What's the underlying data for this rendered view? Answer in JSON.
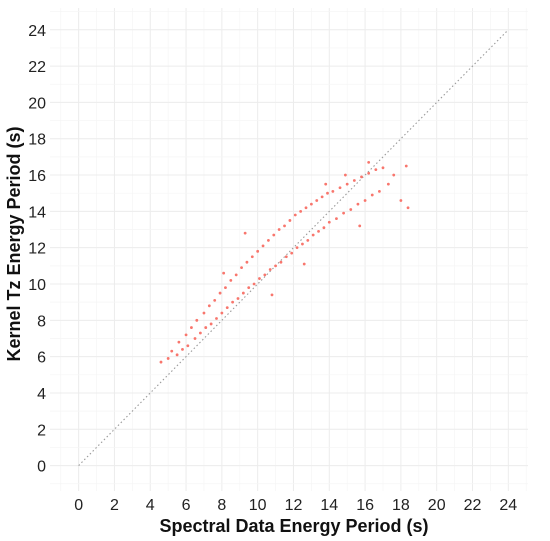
{
  "chart_data": {
    "type": "scatter",
    "xlabel": "Spectral Data Energy Period (s)",
    "ylabel": "Kernel Tz Energy Period (s)",
    "xlim": [
      -1.6,
      25.1
    ],
    "ylim": [
      -1.4,
      25.2
    ],
    "xticks": [
      0,
      2,
      4,
      6,
      8,
      10,
      12,
      14,
      16,
      18,
      20,
      22,
      24
    ],
    "yticks": [
      0,
      2,
      4,
      6,
      8,
      10,
      12,
      14,
      16,
      18,
      20,
      22,
      24
    ],
    "xtick_labels": [
      "0",
      "2",
      "4",
      "6",
      "8",
      "10",
      "12",
      "14",
      "16",
      "18",
      "20",
      "22",
      "24"
    ],
    "ytick_labels": [
      "0",
      "2",
      "4",
      "6",
      "8",
      "10",
      "12",
      "14",
      "16",
      "18",
      "20",
      "22",
      "24"
    ],
    "grid": true,
    "legend": "none",
    "point_color": "#f8766d",
    "reference_line": {
      "x": [
        0,
        24
      ],
      "y": [
        0,
        24
      ],
      "style": "dotted",
      "color": "#9a9a9a"
    },
    "series": [
      {
        "color": "#f8766d",
        "points": [
          [
            4.6,
            5.7
          ],
          [
            5.0,
            5.9
          ],
          [
            5.2,
            6.3
          ],
          [
            5.5,
            6.1
          ],
          [
            5.6,
            6.8
          ],
          [
            5.8,
            6.4
          ],
          [
            6.0,
            7.2
          ],
          [
            6.1,
            6.6
          ],
          [
            6.3,
            7.6
          ],
          [
            6.5,
            7.0
          ],
          [
            6.6,
            8.0
          ],
          [
            6.8,
            7.3
          ],
          [
            7.0,
            8.4
          ],
          [
            7.1,
            7.6
          ],
          [
            7.3,
            8.8
          ],
          [
            7.4,
            7.8
          ],
          [
            7.6,
            9.1
          ],
          [
            7.7,
            8.1
          ],
          [
            7.9,
            9.5
          ],
          [
            8.0,
            8.4
          ],
          [
            8.2,
            9.8
          ],
          [
            8.3,
            8.7
          ],
          [
            8.5,
            10.2
          ],
          [
            8.6,
            9.0
          ],
          [
            8.8,
            10.5
          ],
          [
            8.9,
            9.2
          ],
          [
            9.1,
            10.9
          ],
          [
            9.2,
            9.5
          ],
          [
            9.4,
            11.2
          ],
          [
            9.5,
            9.8
          ],
          [
            9.7,
            11.5
          ],
          [
            9.8,
            10.0
          ],
          [
            10.0,
            11.8
          ],
          [
            10.1,
            10.3
          ],
          [
            10.3,
            12.1
          ],
          [
            10.4,
            10.5
          ],
          [
            10.6,
            12.4
          ],
          [
            10.7,
            10.8
          ],
          [
            10.9,
            12.7
          ],
          [
            11.0,
            11.0
          ],
          [
            11.2,
            13.0
          ],
          [
            11.3,
            11.2
          ],
          [
            11.5,
            13.2
          ],
          [
            11.6,
            11.5
          ],
          [
            11.8,
            13.5
          ],
          [
            11.9,
            11.7
          ],
          [
            12.1,
            13.8
          ],
          [
            12.2,
            12.0
          ],
          [
            12.4,
            14.0
          ],
          [
            12.5,
            12.2
          ],
          [
            12.7,
            14.2
          ],
          [
            12.8,
            12.4
          ],
          [
            13.0,
            14.4
          ],
          [
            13.1,
            12.7
          ],
          [
            13.3,
            14.6
          ],
          [
            13.4,
            12.9
          ],
          [
            13.6,
            14.8
          ],
          [
            13.7,
            13.1
          ],
          [
            13.9,
            15.0
          ],
          [
            14.0,
            13.4
          ],
          [
            14.2,
            15.1
          ],
          [
            14.4,
            13.6
          ],
          [
            14.6,
            15.3
          ],
          [
            14.8,
            13.9
          ],
          [
            15.0,
            15.5
          ],
          [
            15.2,
            14.1
          ],
          [
            15.4,
            15.7
          ],
          [
            15.6,
            14.4
          ],
          [
            15.8,
            15.9
          ],
          [
            16.0,
            14.6
          ],
          [
            16.2,
            16.1
          ],
          [
            16.4,
            14.9
          ],
          [
            16.6,
            16.3
          ],
          [
            16.8,
            15.1
          ],
          [
            17.0,
            16.4
          ],
          [
            17.3,
            15.5
          ],
          [
            17.6,
            16.0
          ],
          [
            18.0,
            14.6
          ],
          [
            18.3,
            16.5
          ],
          [
            18.4,
            14.2
          ],
          [
            16.2,
            16.7
          ],
          [
            13.8,
            15.5
          ],
          [
            14.9,
            16.0
          ],
          [
            9.3,
            12.8
          ],
          [
            10.8,
            9.4
          ],
          [
            12.6,
            11.1
          ],
          [
            8.1,
            10.6
          ],
          [
            15.7,
            13.2
          ]
        ]
      }
    ]
  }
}
